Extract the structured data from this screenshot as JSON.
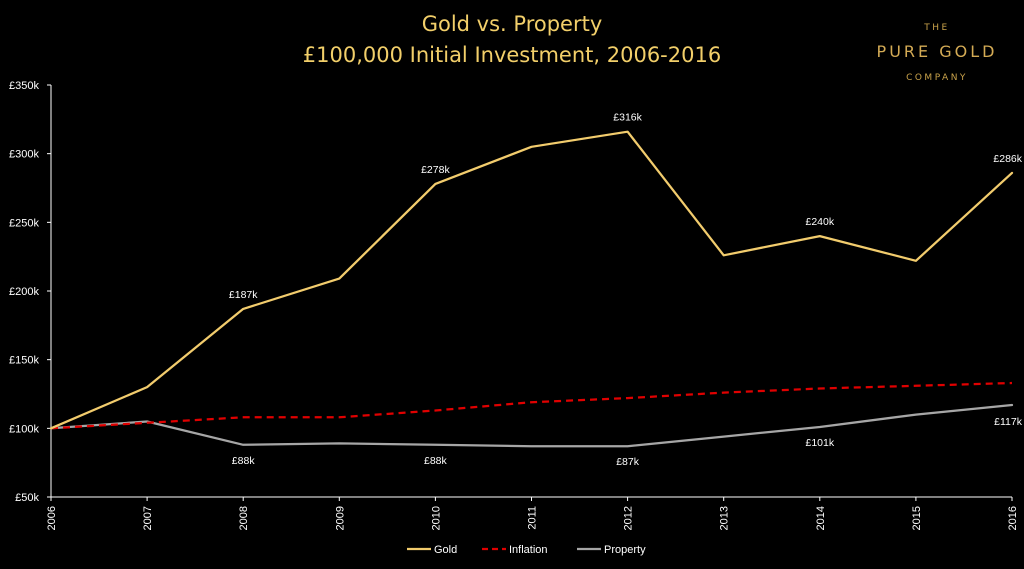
{
  "header": {
    "title_line1": "Gold vs. Property",
    "title_line2": "£100,000 Initial Investment, 2006-2016"
  },
  "logo": {
    "top": "THE",
    "main": "PURE GOLD",
    "bottom": "COMPANY"
  },
  "colors": {
    "background": "#000000",
    "title": "#f2cf6a",
    "gold": "#f2cc6d",
    "inflation": "#e00000",
    "property": "#a6a6a6",
    "axis": "#ffffff"
  },
  "chart_data": {
    "type": "line",
    "title": "Gold vs. Property",
    "subtitle": "£100,000 Initial Investment, 2006-2016",
    "x": [
      "2006",
      "2007",
      "2008",
      "2009",
      "2010",
      "2011",
      "2012",
      "2013",
      "2014",
      "2015",
      "2016"
    ],
    "ylim": [
      50,
      350
    ],
    "yticks": [
      {
        "value": 50,
        "label": "£50k"
      },
      {
        "value": 100,
        "label": "£100k"
      },
      {
        "value": 150,
        "label": "£150k"
      },
      {
        "value": 200,
        "label": "£200k"
      },
      {
        "value": 250,
        "label": "£250k"
      },
      {
        "value": 300,
        "label": "£300k"
      },
      {
        "value": 350,
        "label": "£350k"
      }
    ],
    "grid": false,
    "legend_position": "bottom",
    "series": [
      {
        "name": "Gold",
        "style": "solid",
        "values": [
          100,
          130,
          187,
          209,
          278,
          305,
          316,
          226,
          240,
          222,
          286
        ],
        "labels": [
          {
            "index": 2,
            "text": "£187k",
            "pos": "above"
          },
          {
            "index": 4,
            "text": "£278k",
            "pos": "above"
          },
          {
            "index": 6,
            "text": "£316k",
            "pos": "above"
          },
          {
            "index": 8,
            "text": "£240k",
            "pos": "above"
          },
          {
            "index": 10,
            "text": "£286k",
            "pos": "above"
          }
        ]
      },
      {
        "name": "Inflation",
        "style": "dashed",
        "values": [
          100,
          104,
          108,
          108,
          113,
          119,
          122,
          126,
          129,
          131,
          133
        ],
        "labels": []
      },
      {
        "name": "Property",
        "style": "solid",
        "values": [
          100,
          105,
          88,
          89,
          88,
          87,
          87,
          94,
          101,
          110,
          117
        ],
        "labels": [
          {
            "index": 2,
            "text": "£88k",
            "pos": "below"
          },
          {
            "index": 4,
            "text": "£88k",
            "pos": "below"
          },
          {
            "index": 6,
            "text": "£87k",
            "pos": "below"
          },
          {
            "index": 8,
            "text": "£101k",
            "pos": "below"
          },
          {
            "index": 10,
            "text": "£117k",
            "pos": "below"
          }
        ]
      }
    ]
  }
}
